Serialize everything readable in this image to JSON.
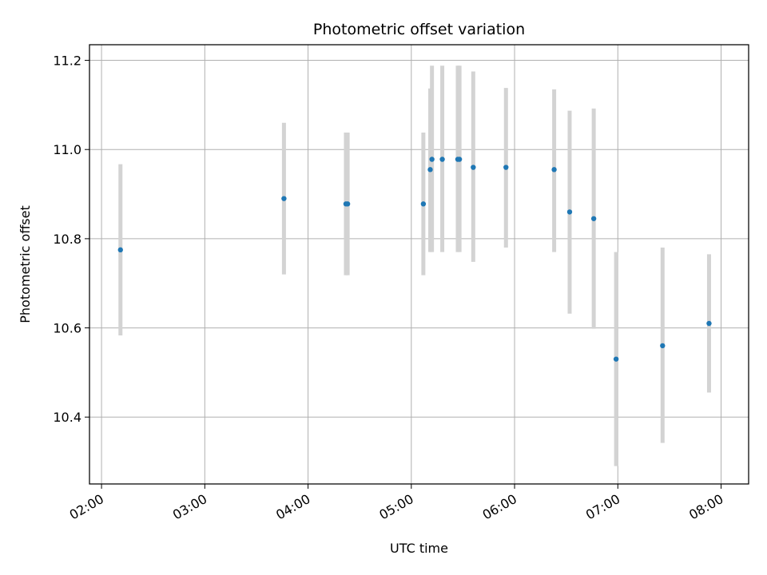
{
  "chart_data": {
    "type": "scatter",
    "title": "Photometric offset variation",
    "xlabel": "UTC time",
    "ylabel": "Photometric offset",
    "x_tick_labels": [
      "02:00",
      "03:00",
      "04:00",
      "05:00",
      "06:00",
      "07:00",
      "08:00"
    ],
    "y_tick_labels": [
      "10.4",
      "10.6",
      "10.8",
      "11.0",
      "11.2"
    ],
    "y_ticks": [
      10.4,
      10.6,
      10.8,
      11.0,
      11.2
    ],
    "xlim": [
      "01:53",
      "08:16"
    ],
    "ylim": [
      10.25,
      11.235
    ],
    "grid": true,
    "marker_color": "#1f77b4",
    "errorbar_color": "#d3d3d3",
    "points": [
      {
        "time": "02:11",
        "y": 10.775,
        "ymin": 10.583,
        "ymax": 10.967
      },
      {
        "time": "03:46",
        "y": 10.89,
        "ymin": 10.72,
        "ymax": 11.06
      },
      {
        "time": "04:22",
        "y": 10.878,
        "ymin": 10.718,
        "ymax": 11.038
      },
      {
        "time": "04:23",
        "y": 10.878,
        "ymin": 10.718,
        "ymax": 11.038
      },
      {
        "time": "05:07",
        "y": 10.878,
        "ymin": 10.718,
        "ymax": 11.038
      },
      {
        "time": "05:11",
        "y": 10.955,
        "ymin": 10.77,
        "ymax": 11.137
      },
      {
        "time": "05:12",
        "y": 10.978,
        "ymin": 10.77,
        "ymax": 11.188
      },
      {
        "time": "05:18",
        "y": 10.978,
        "ymin": 10.77,
        "ymax": 11.188
      },
      {
        "time": "05:27",
        "y": 10.978,
        "ymin": 10.77,
        "ymax": 11.188
      },
      {
        "time": "05:28",
        "y": 10.978,
        "ymin": 10.77,
        "ymax": 11.188
      },
      {
        "time": "05:36",
        "y": 10.96,
        "ymin": 10.748,
        "ymax": 11.175
      },
      {
        "time": "05:55",
        "y": 10.96,
        "ymin": 10.78,
        "ymax": 11.138
      },
      {
        "time": "06:23",
        "y": 10.955,
        "ymin": 10.77,
        "ymax": 11.135
      },
      {
        "time": "06:32",
        "y": 10.86,
        "ymin": 10.632,
        "ymax": 11.087
      },
      {
        "time": "06:46",
        "y": 10.845,
        "ymin": 10.598,
        "ymax": 11.092
      },
      {
        "time": "06:59",
        "y": 10.53,
        "ymin": 10.29,
        "ymax": 10.77
      },
      {
        "time": "07:26",
        "y": 10.56,
        "ymin": 10.342,
        "ymax": 10.78
      },
      {
        "time": "07:53",
        "y": 10.61,
        "ymin": 10.455,
        "ymax": 10.765
      }
    ]
  }
}
